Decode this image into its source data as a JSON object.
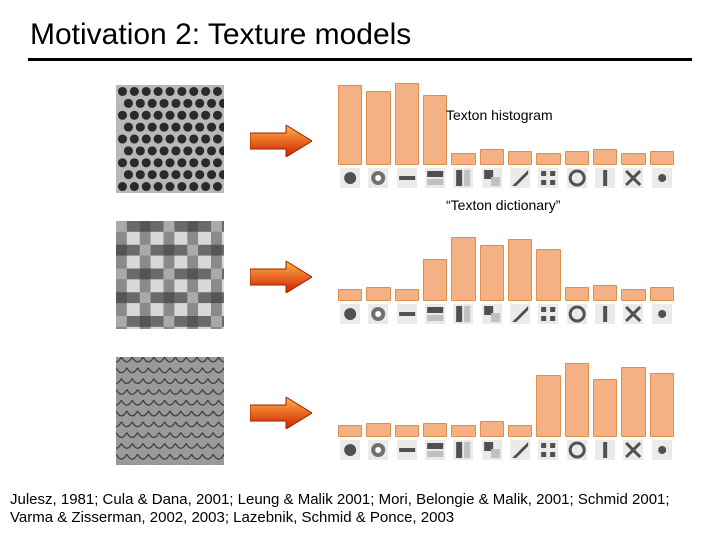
{
  "title": "Motivation 2: Texture models",
  "labels": {
    "hist_label": "Texton histogram",
    "dict_label": "“Texton dictionary”"
  },
  "references": "Julesz, 1981; Cula & Dana, 2001; Leung & Malik 2001; Mori, Belongie & Malik, 2001; Schmid 2001; Varma & Zisserman, 2002, 2003; Lazebnik, Schmid & Ponce, 2003",
  "colors": {
    "bar_fill": "#f4b183",
    "bar_stroke": "#e08e47",
    "arrow_fill": "#ff3000",
    "arrow_grad_top": "#ffb347",
    "arrow_grad_bot": "#d02000",
    "arrow_stroke": "#a02000",
    "texture_dark": "#3a3a3a",
    "texture_mid": "#888888",
    "texture_light": "#c8c8c8",
    "icon_bg": "#eaeaea",
    "icon_fg": "#505050"
  },
  "histograms": {
    "row1": [
      78,
      72,
      80,
      68,
      10,
      14,
      12,
      10,
      12,
      14,
      10,
      12
    ],
    "row2": [
      10,
      12,
      10,
      40,
      62,
      54,
      60,
      50,
      12,
      14,
      10,
      12
    ],
    "row3": [
      10,
      12,
      10,
      12,
      10,
      14,
      10,
      60,
      72,
      56,
      68,
      62
    ]
  }
}
